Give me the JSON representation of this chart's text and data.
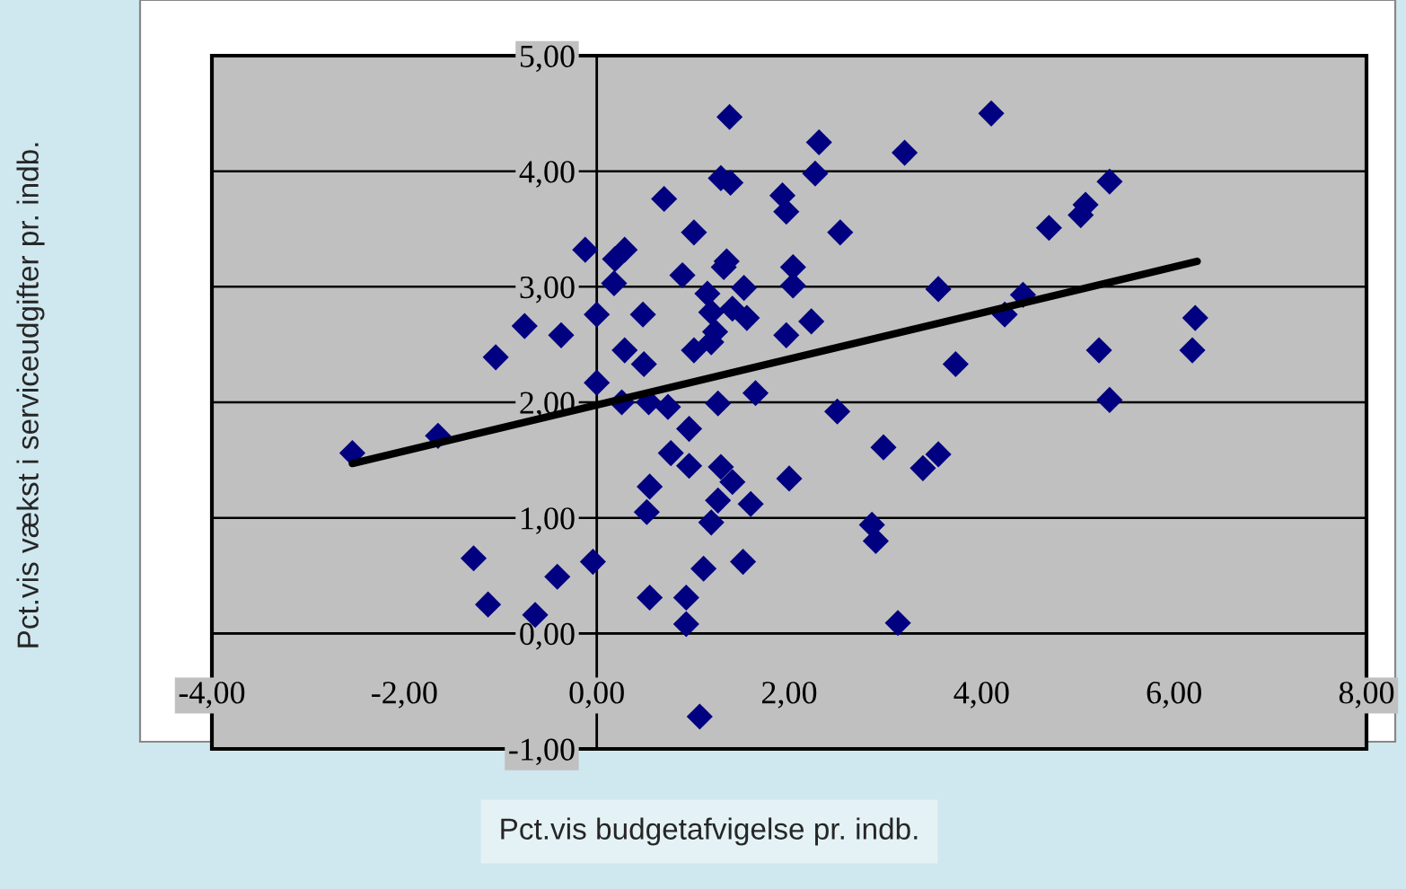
{
  "chart_data": {
    "type": "scatter",
    "xlabel": "Pct.vis budgetafvigelse pr. indb.",
    "ylabel": "Pct.vis vækst i serviceudgifter pr. indb.",
    "xlim": [
      -4,
      8
    ],
    "ylim": [
      -1,
      5
    ],
    "xticks": [
      {
        "value": -4,
        "label": "-4,00"
      },
      {
        "value": -2,
        "label": "-2,00"
      },
      {
        "value": 0,
        "label": "0,00"
      },
      {
        "value": 2,
        "label": "2,00"
      },
      {
        "value": 4,
        "label": "4,00"
      },
      {
        "value": 6,
        "label": "6,00"
      },
      {
        "value": 8,
        "label": "8,00"
      }
    ],
    "yticks": [
      {
        "value": -1,
        "label": "-1,00"
      },
      {
        "value": 0,
        "label": "0,00"
      },
      {
        "value": 1,
        "label": "1,00"
      },
      {
        "value": 2,
        "label": "2,00"
      },
      {
        "value": 3,
        "label": "3,00"
      },
      {
        "value": 4,
        "label": "4,00"
      },
      {
        "value": 5,
        "label": "5,00"
      }
    ],
    "grid": "y",
    "series": [
      {
        "type": "scatter",
        "color": "#000080",
        "marker": "diamond",
        "x": [
          -2.54,
          -1.65,
          -1.05,
          -0.75,
          -0.37,
          -1.28,
          -1.13,
          -0.64,
          -0.41,
          -0.04,
          -0.12,
          0.0,
          0.0,
          0.18,
          0.19,
          0.29,
          0.29,
          0.48,
          0.49,
          0.26,
          0.54,
          0.74,
          0.7,
          1.01,
          0.89,
          0.96,
          0.77,
          0.96,
          0.55,
          0.52,
          0.55,
          0.93,
          0.93,
          1.07,
          1.11,
          1.19,
          1.26,
          1.29,
          1.41,
          1.52,
          1.26,
          1.01,
          1.19,
          1.23,
          1.15,
          1.19,
          1.32,
          1.35,
          1.29,
          1.39,
          1.38,
          1.41,
          1.53,
          1.56,
          1.6,
          1.65,
          1.93,
          1.97,
          2.31,
          2.27,
          2.53,
          2.04,
          2.04,
          1.97,
          2.23,
          2.5,
          2.0,
          3.2,
          4.1,
          2.98,
          3.39,
          3.55,
          2.86,
          2.9,
          3.13,
          3.55,
          3.73,
          4.24,
          4.43,
          4.7,
          5.03,
          5.08,
          5.33,
          5.22,
          5.33,
          6.22,
          6.19
        ],
        "values": [
          1.56,
          1.71,
          2.39,
          2.66,
          2.58,
          0.65,
          0.25,
          0.16,
          0.49,
          0.62,
          3.32,
          2.76,
          2.17,
          3.03,
          3.24,
          3.32,
          2.45,
          2.76,
          2.33,
          2.0,
          2.0,
          1.96,
          3.76,
          3.47,
          3.1,
          1.77,
          1.56,
          1.45,
          1.27,
          1.05,
          0.31,
          0.31,
          0.08,
          -0.72,
          0.56,
          0.96,
          1.15,
          1.44,
          1.31,
          0.62,
          1.99,
          2.45,
          2.52,
          2.61,
          2.94,
          2.78,
          3.17,
          3.22,
          3.94,
          3.9,
          4.47,
          2.81,
          2.99,
          2.73,
          1.12,
          2.08,
          3.79,
          3.65,
          4.25,
          3.98,
          3.47,
          3.17,
          3.01,
          2.58,
          2.7,
          1.92,
          1.34,
          4.16,
          4.5,
          1.61,
          1.43,
          1.55,
          0.94,
          0.8,
          0.09,
          2.98,
          2.33,
          2.76,
          2.93,
          3.51,
          3.62,
          3.71,
          3.91,
          2.45,
          2.02,
          2.73,
          2.45
        ]
      },
      {
        "type": "line",
        "color": "#000000",
        "marker": "none",
        "line_style": "solid",
        "x": [
          -2.54,
          6.24
        ],
        "values": [
          1.47,
          3.22
        ]
      }
    ]
  }
}
